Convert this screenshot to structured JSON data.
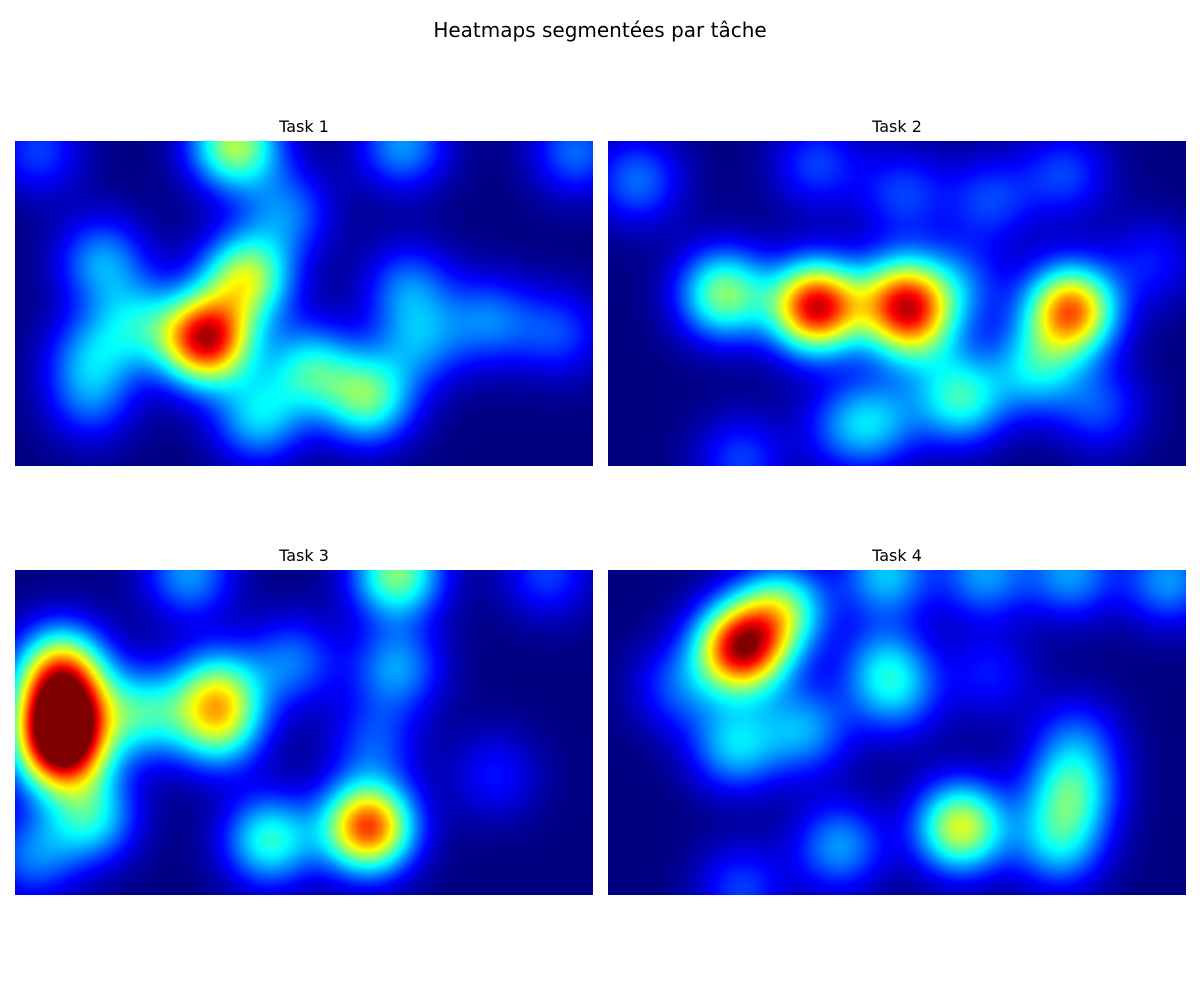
{
  "title": "Heatmaps segmentées par tâche",
  "chart_data": [
    {
      "type": "heatmap",
      "title": "Task 1",
      "colormap": "jet",
      "axes_visible": false,
      "colors": {
        "background": "#00007f",
        "hot": "#8b0000"
      },
      "hotspots": [
        {
          "x": 0.33,
          "y": 0.61,
          "intensity": 1.0
        },
        {
          "x": 0.4,
          "y": 0.42,
          "intensity": 0.6
        },
        {
          "x": 0.61,
          "y": 0.79,
          "intensity": 0.5
        },
        {
          "x": 0.38,
          "y": 0.01,
          "intensity": 0.6
        },
        {
          "x": 0.51,
          "y": 0.7,
          "intensity": 0.4
        },
        {
          "x": 0.42,
          "y": 0.85,
          "intensity": 0.35
        },
        {
          "x": 0.15,
          "y": 0.37,
          "intensity": 0.3
        },
        {
          "x": 0.21,
          "y": 0.56,
          "intensity": 0.3
        },
        {
          "x": 0.13,
          "y": 0.66,
          "intensity": 0.25
        },
        {
          "x": 0.68,
          "y": 0.45,
          "intensity": 0.25
        },
        {
          "x": 0.7,
          "y": 0.62,
          "intensity": 0.25
        },
        {
          "x": 0.82,
          "y": 0.55,
          "intensity": 0.25
        },
        {
          "x": 0.47,
          "y": 0.22,
          "intensity": 0.25
        },
        {
          "x": 0.94,
          "y": 0.59,
          "intensity": 0.2
        },
        {
          "x": 0.67,
          "y": 0.01,
          "intensity": 0.3
        },
        {
          "x": 0.97,
          "y": 0.03,
          "intensity": 0.25
        },
        {
          "x": 0.04,
          "y": 0.03,
          "intensity": 0.2
        },
        {
          "x": 0.13,
          "y": 0.8,
          "intensity": 0.2
        }
      ]
    },
    {
      "type": "heatmap",
      "title": "Task 2",
      "colormap": "jet",
      "axes_visible": false,
      "colors": {
        "background": "#00007f",
        "hot": "#8b0000"
      },
      "hotspots": [
        {
          "x": 0.36,
          "y": 0.51,
          "intensity": 1.0
        },
        {
          "x": 0.8,
          "y": 0.52,
          "intensity": 0.85
        },
        {
          "x": 0.51,
          "y": 0.49,
          "intensity": 0.75
        },
        {
          "x": 0.2,
          "y": 0.47,
          "intensity": 0.55
        },
        {
          "x": 0.61,
          "y": 0.79,
          "intensity": 0.45
        },
        {
          "x": 0.74,
          "y": 0.7,
          "intensity": 0.35
        },
        {
          "x": 0.53,
          "y": 0.58,
          "intensity": 0.35
        },
        {
          "x": 0.05,
          "y": 0.12,
          "intensity": 0.25
        },
        {
          "x": 0.36,
          "y": 0.07,
          "intensity": 0.2
        },
        {
          "x": 0.51,
          "y": 0.16,
          "intensity": 0.2
        },
        {
          "x": 0.66,
          "y": 0.18,
          "intensity": 0.2
        },
        {
          "x": 0.79,
          "y": 0.1,
          "intensity": 0.2
        },
        {
          "x": 0.61,
          "y": 0.44,
          "intensity": 0.2
        },
        {
          "x": 0.41,
          "y": 0.88,
          "intensity": 0.2
        },
        {
          "x": 0.47,
          "y": 0.86,
          "intensity": 0.25
        },
        {
          "x": 0.23,
          "y": 0.98,
          "intensity": 0.2
        },
        {
          "x": 0.85,
          "y": 0.82,
          "intensity": 0.2
        },
        {
          "x": 0.94,
          "y": 0.37,
          "intensity": 0.15
        }
      ]
    },
    {
      "type": "heatmap",
      "title": "Task 3",
      "colormap": "jet",
      "axes_visible": false,
      "colors": {
        "background": "#00007f",
        "hot": "#8b0000"
      },
      "hotspots": [
        {
          "x": 0.08,
          "y": 0.43,
          "intensity": 0.85
        },
        {
          "x": 0.08,
          "y": 0.55,
          "intensity": 0.95
        },
        {
          "x": 0.08,
          "y": 0.3,
          "intensity": 0.6
        },
        {
          "x": 0.61,
          "y": 0.79,
          "intensity": 0.9
        },
        {
          "x": 0.44,
          "y": 0.83,
          "intensity": 0.45
        },
        {
          "x": 0.35,
          "y": 0.37,
          "intensity": 0.45
        },
        {
          "x": 0.35,
          "y": 0.48,
          "intensity": 0.45
        },
        {
          "x": 0.22,
          "y": 0.44,
          "intensity": 0.4
        },
        {
          "x": 0.13,
          "y": 0.76,
          "intensity": 0.4
        },
        {
          "x": 0.66,
          "y": 0.01,
          "intensity": 0.55
        },
        {
          "x": 0.3,
          "y": 0.01,
          "intensity": 0.3
        },
        {
          "x": 0.48,
          "y": 0.28,
          "intensity": 0.25
        },
        {
          "x": 0.66,
          "y": 0.3,
          "intensity": 0.3
        },
        {
          "x": 0.62,
          "y": 0.53,
          "intensity": 0.2
        },
        {
          "x": 0.03,
          "y": 0.88,
          "intensity": 0.25
        },
        {
          "x": 0.92,
          "y": 0.01,
          "intensity": 0.2
        },
        {
          "x": 0.83,
          "y": 0.63,
          "intensity": 0.15
        }
      ]
    },
    {
      "type": "heatmap",
      "title": "Task 4",
      "colormap": "jet",
      "axes_visible": false,
      "colors": {
        "background": "#00007f",
        "hot": "#8b0000"
      },
      "hotspots": [
        {
          "x": 0.23,
          "y": 0.24,
          "intensity": 1.0
        },
        {
          "x": 0.3,
          "y": 0.12,
          "intensity": 0.5
        },
        {
          "x": 0.61,
          "y": 0.79,
          "intensity": 0.65
        },
        {
          "x": 0.8,
          "y": 0.68,
          "intensity": 0.4
        },
        {
          "x": 0.78,
          "y": 0.84,
          "intensity": 0.35
        },
        {
          "x": 0.4,
          "y": 0.85,
          "intensity": 0.3
        },
        {
          "x": 0.22,
          "y": 0.54,
          "intensity": 0.35
        },
        {
          "x": 0.34,
          "y": 0.49,
          "intensity": 0.3
        },
        {
          "x": 0.48,
          "y": 0.3,
          "intensity": 0.3
        },
        {
          "x": 0.5,
          "y": 0.39,
          "intensity": 0.2
        },
        {
          "x": 0.48,
          "y": 0.01,
          "intensity": 0.35
        },
        {
          "x": 0.65,
          "y": 0.01,
          "intensity": 0.3
        },
        {
          "x": 0.8,
          "y": 0.01,
          "intensity": 0.3
        },
        {
          "x": 0.97,
          "y": 0.03,
          "intensity": 0.3
        },
        {
          "x": 0.12,
          "y": 0.36,
          "intensity": 0.2
        },
        {
          "x": 0.81,
          "y": 0.52,
          "intensity": 0.2
        },
        {
          "x": 0.23,
          "y": 0.98,
          "intensity": 0.2
        },
        {
          "x": 0.66,
          "y": 0.32,
          "intensity": 0.15
        }
      ]
    }
  ]
}
